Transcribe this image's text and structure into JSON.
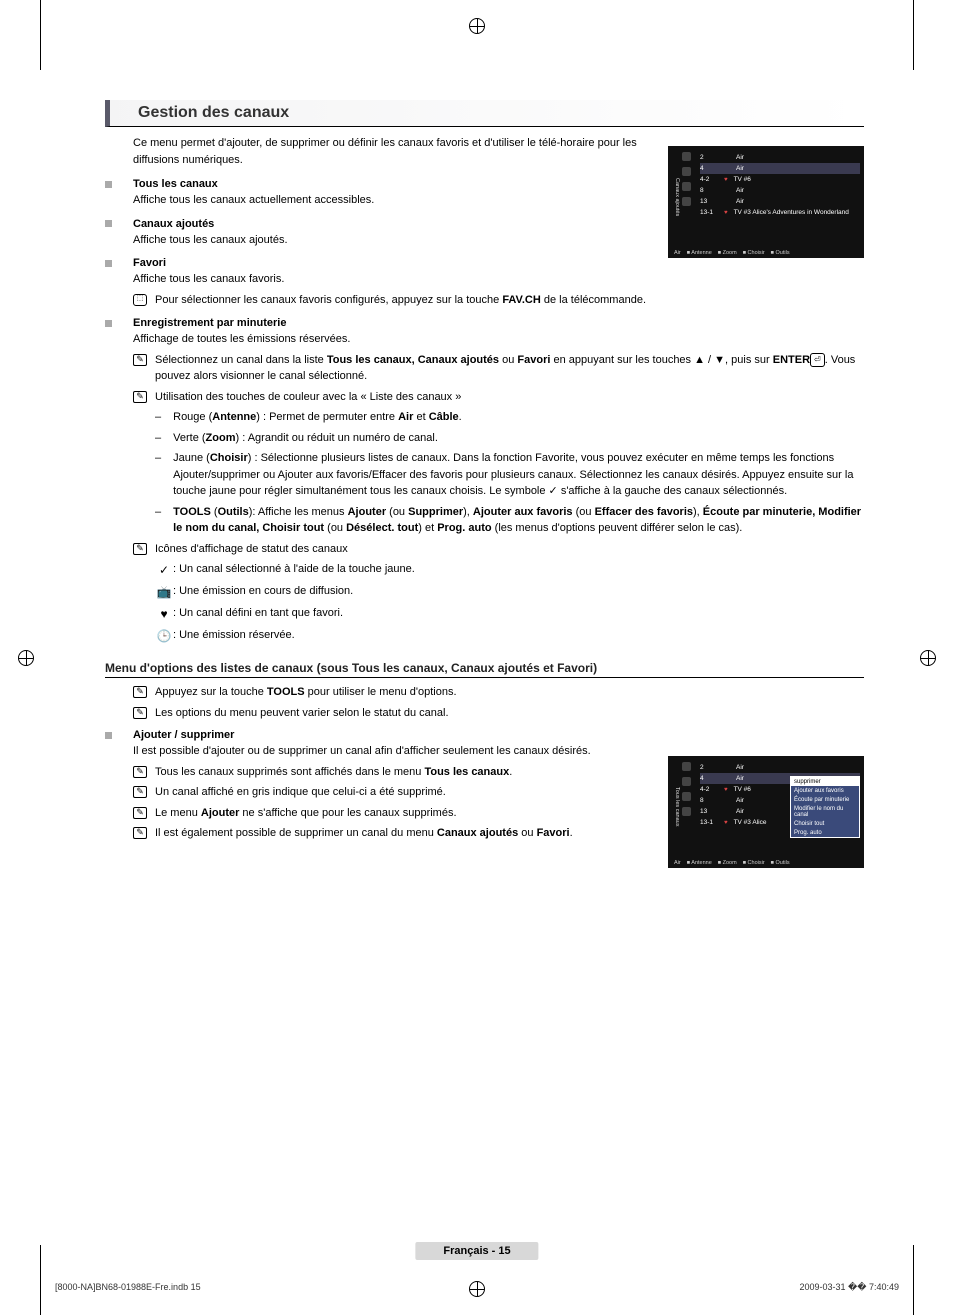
{
  "section": {
    "title": "Gestion des canaux",
    "intro": "Ce menu permet d'ajouter, de supprimer ou définir les canaux favoris et d'utiliser le télé-horaire pour les diffusions numériques."
  },
  "subsections": [
    {
      "title": "Tous les canaux",
      "body": "Affiche tous les canaux actuellement accessibles."
    },
    {
      "title": "Canaux ajoutés",
      "body": "Affiche tous les canaux ajoutés."
    },
    {
      "title": "Favori",
      "body": "Affiche tous les canaux favoris."
    },
    {
      "title": "Enregistrement par minuterie",
      "body": "Affichage de toutes les émissions réservées."
    }
  ],
  "favori_remote_note_pre": "Pour sélectionner les canaux favoris configurés, appuyez sur la touche ",
  "favori_remote_note_bold": "FAV.CH",
  "favori_remote_note_post": " de la télécommande.",
  "enreg_note1_pre": "Sélectionnez un canal dans la liste ",
  "enreg_note1_b1": "Tous les canaux, Canaux ajoutés",
  "enreg_note1_mid1": " ou ",
  "enreg_note1_b2": "Favori",
  "enreg_note1_mid2": " en appuyant sur les touches ▲ / ▼, puis sur ",
  "enreg_note1_b3": "ENTER",
  "enreg_note1_post": ". Vous pouvez alors visionner le canal sélectionné.",
  "color_note": "Utilisation des touches de couleur avec la « Liste des canaux »",
  "color_items": {
    "d0_pre": "Rouge (",
    "d0_b": "Antenne",
    "d0_mid": ") : Permet de permuter entre ",
    "d0_b2": "Air",
    "d0_mid2": " et ",
    "d0_b3": "Câble",
    "d0_post": ".",
    "d1_pre": "Verte (",
    "d1_b": "Zoom",
    "d1_post": ") : Agrandit ou réduit un numéro de canal.",
    "d2_pre": "Jaune (",
    "d2_b": "Choisir",
    "d2_post": ") : Sélectionne plusieurs listes de canaux. Dans la fonction Favorite, vous pouvez exécuter en même temps les fonctions Ajouter/supprimer ou Ajouter aux favoris/Effacer des favoris pour plusieurs canaux. Sélectionnez les canaux désirés. Appuyez ensuite sur la touche jaune pour régler simultanément tous les canaux choisis. Le symbole  ✓  s'affiche à la gauche des canaux sélectionnés.",
    "d3_b1": "TOOLS",
    "d3_mid1": " (",
    "d3_b2": "Outils",
    "d3_mid2": "): Affiche les menus ",
    "d3_b3": "Ajouter",
    "d3_mid3": " (ou ",
    "d3_b4": "Supprimer",
    "d3_mid4": "), ",
    "d3_b5": "Ajouter aux favoris",
    "d3_mid5": " (ou ",
    "d3_b6": "Effacer des favoris",
    "d3_mid6": "), ",
    "d3_b7": "Écoute par minuterie, Modifier le nom du canal, Choisir tout",
    "d3_mid7": " (ou ",
    "d3_b8": "Désélect. tout",
    "d3_mid8": ") et ",
    "d3_b9": "Prog. auto",
    "d3_post": " (les menus d'options peuvent différer selon le cas)."
  },
  "status_note": "Icônes d'affichage de statut des canaux",
  "status_items": [
    {
      "glyph": "✓",
      "text": ": Un canal sélectionné à l'aide de la touche jaune."
    },
    {
      "glyph": "📺",
      "text": ": Une émission en cours de diffusion."
    },
    {
      "glyph": "♥",
      "text": ": Un canal défini en tant que favori."
    },
    {
      "glyph": "🕒",
      "text": ": Une émission réservée."
    }
  ],
  "menu_heading": "Menu d'options des listes de canaux (sous Tous les canaux, Canaux ajoutés et Favori)",
  "menu_note1_pre": "Appuyez sur la touche ",
  "menu_note1_b": "TOOLS",
  "menu_note1_post": " pour utiliser le menu d'options.",
  "menu_note2": "Les options du menu peuvent varier selon le statut du canal.",
  "ajouter": {
    "title": "Ajouter / supprimer",
    "body": "Il est possible d'ajouter ou de supprimer un canal afin d'afficher seulement les canaux désirés.",
    "n1_pre": "Tous les canaux supprimés sont affichés dans le menu ",
    "n1_b": "Tous les canaux",
    "n1_post": ".",
    "n2": "Un canal affiché en gris indique que celui-ci a été supprimé.",
    "n3_pre": "Le menu ",
    "n3_b": "Ajouter",
    "n3_post": " ne s'affiche que pour les canaux supprimés.",
    "n4_pre": "Il est également possible de supprimer un canal du menu ",
    "n4_b": "Canaux ajoutés",
    "n4_mid": " ou ",
    "n4_b2": "Favori",
    "n4_post": "."
  },
  "screenshot1": {
    "sidebar": "Canaux ajoutés",
    "rows": [
      {
        "ch": "2",
        "name": "Air",
        "heart": false,
        "hl": false
      },
      {
        "ch": "4",
        "name": "Air",
        "heart": false,
        "hl": true
      },
      {
        "ch": "4-2",
        "name": "TV #6",
        "heart": true,
        "hl": false
      },
      {
        "ch": "8",
        "name": "Air",
        "heart": false,
        "hl": false
      },
      {
        "ch": "13",
        "name": "Air",
        "heart": false,
        "hl": false
      },
      {
        "ch": "13-1",
        "name": "TV #3    Alice's Adventures in Wonderland",
        "heart": true,
        "hl": false
      }
    ],
    "footer": [
      "Air",
      "Antenne",
      "Zoom",
      "Choisir",
      "Outils"
    ]
  },
  "screenshot2": {
    "sidebar": "Tous les canaux",
    "rows": [
      {
        "ch": "2",
        "name": "Air",
        "heart": false,
        "hl": false
      },
      {
        "ch": "4",
        "name": "Air",
        "heart": false,
        "hl": true
      },
      {
        "ch": "4-2",
        "name": "TV #6",
        "heart": true,
        "hl": false
      },
      {
        "ch": "8",
        "name": "Air",
        "heart": false,
        "hl": false
      },
      {
        "ch": "13",
        "name": "Air",
        "heart": false,
        "hl": false
      },
      {
        "ch": "13-1",
        "name": "TV #3    Alice",
        "heart": true,
        "hl": false
      }
    ],
    "ctx": [
      "supprimer",
      "Ajouter aux favoris",
      "Écoute par minuterie",
      "Modifier le nom du canal",
      "Choisir tout",
      "Prog. auto"
    ],
    "footer": [
      "Air",
      "Antenne",
      "Zoom",
      "Choisir",
      "Outils"
    ]
  },
  "page_footer": "Français - 15",
  "print_left": "[8000-NA]BN68-01988E-Fre.indb   15",
  "print_right": "2009-03-31   �� 7:40:49"
}
